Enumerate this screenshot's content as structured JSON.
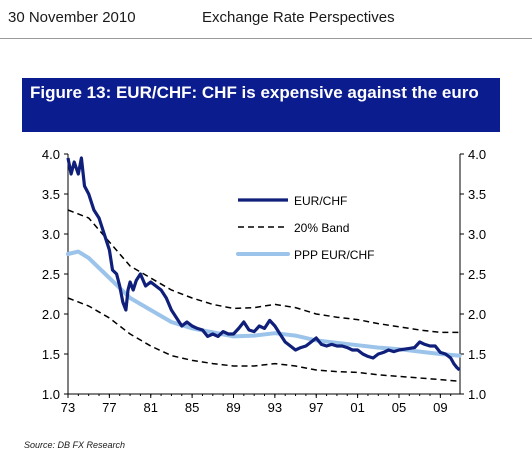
{
  "header": {
    "date": "30 November 2010",
    "publication": "Exchange Rate Perspectives"
  },
  "figure": {
    "title": "Figure 13: EUR/CHF: CHF is expensive against the euro"
  },
  "source": "Source: DB FX Research",
  "colors": {
    "title_bg": "#0b1c8f",
    "eurchf": "#0f1f7a",
    "band": "#000000",
    "ppp": "#9cc4ea"
  },
  "chart_data": {
    "type": "line",
    "xlim": [
      1973,
      2010.9
    ],
    "ylim": [
      1.0,
      4.0
    ],
    "x_ticks": [
      1973,
      1977,
      1981,
      1985,
      1989,
      1993,
      1997,
      2001,
      2005,
      2009
    ],
    "x_tick_labels": [
      "73",
      "77",
      "81",
      "85",
      "89",
      "93",
      "97",
      "01",
      "05",
      "09"
    ],
    "y_ticks": [
      1.0,
      1.5,
      2.0,
      2.5,
      3.0,
      3.5,
      4.0
    ],
    "y_tick_labels": [
      "1.0",
      "1.5",
      "2.0",
      "2.5",
      "3.0",
      "3.5",
      "4.0"
    ],
    "legend_position": "top-right",
    "series": [
      {
        "name": "EUR/CHF",
        "style": "solid-thick",
        "x": [
          1973.0,
          1973.3,
          1973.6,
          1974.0,
          1974.3,
          1974.6,
          1975.0,
          1975.5,
          1976.0,
          1976.5,
          1977.0,
          1977.3,
          1977.7,
          1978.0,
          1978.3,
          1978.6,
          1978.8,
          1979.0,
          1979.3,
          1979.6,
          1980.0,
          1980.5,
          1981.0,
          1981.5,
          1982.0,
          1982.5,
          1983.0,
          1983.5,
          1984.0,
          1984.5,
          1985.0,
          1985.5,
          1986.0,
          1986.5,
          1987.0,
          1987.5,
          1988.0,
          1988.5,
          1989.0,
          1989.5,
          1990.0,
          1990.5,
          1991.0,
          1991.5,
          1992.0,
          1992.5,
          1993.0,
          1993.5,
          1994.0,
          1994.5,
          1995.0,
          1995.5,
          1996.0,
          1996.5,
          1997.0,
          1997.5,
          1998.0,
          1998.5,
          1999.0,
          1999.5,
          2000.0,
          2000.5,
          2001.0,
          2001.5,
          2002.0,
          2002.5,
          2003.0,
          2003.5,
          2004.0,
          2004.5,
          2005.0,
          2005.5,
          2006.0,
          2006.5,
          2007.0,
          2007.5,
          2008.0,
          2008.5,
          2009.0,
          2009.5,
          2010.0,
          2010.3,
          2010.6,
          2010.85
        ],
        "values": [
          3.95,
          3.75,
          3.9,
          3.75,
          3.95,
          3.6,
          3.5,
          3.3,
          3.2,
          3.0,
          2.8,
          2.55,
          2.5,
          2.35,
          2.15,
          2.05,
          2.3,
          2.4,
          2.3,
          2.42,
          2.5,
          2.35,
          2.4,
          2.35,
          2.3,
          2.2,
          2.05,
          1.95,
          1.85,
          1.9,
          1.85,
          1.82,
          1.8,
          1.72,
          1.75,
          1.72,
          1.78,
          1.75,
          1.75,
          1.82,
          1.9,
          1.8,
          1.78,
          1.85,
          1.82,
          1.92,
          1.85,
          1.75,
          1.65,
          1.6,
          1.55,
          1.58,
          1.6,
          1.65,
          1.7,
          1.62,
          1.6,
          1.62,
          1.6,
          1.6,
          1.58,
          1.55,
          1.55,
          1.5,
          1.47,
          1.45,
          1.5,
          1.52,
          1.55,
          1.53,
          1.55,
          1.56,
          1.57,
          1.58,
          1.65,
          1.62,
          1.6,
          1.6,
          1.52,
          1.5,
          1.45,
          1.38,
          1.33,
          1.3
        ]
      },
      {
        "name": "20% Band",
        "style": "dashed",
        "x": [
          1973,
          1975,
          1977,
          1979,
          1981,
          1983,
          1985,
          1987,
          1989,
          1991,
          1993,
          1995,
          1997,
          1999,
          2001,
          2003,
          2005,
          2007,
          2009,
          2010.85
        ],
        "values": [
          3.3,
          3.2,
          2.9,
          2.6,
          2.45,
          2.3,
          2.2,
          2.12,
          2.07,
          2.08,
          2.12,
          2.08,
          2.0,
          1.96,
          1.93,
          1.88,
          1.84,
          1.8,
          1.77,
          1.77
        ]
      },
      {
        "name": "20% Band (lower)",
        "style": "dashed",
        "x": [
          1973,
          1975,
          1977,
          1979,
          1981,
          1983,
          1985,
          1987,
          1989,
          1991,
          1993,
          1995,
          1997,
          1999,
          2001,
          2003,
          2005,
          2007,
          2009,
          2010.85
        ],
        "values": [
          2.2,
          2.1,
          1.95,
          1.75,
          1.6,
          1.48,
          1.42,
          1.38,
          1.35,
          1.35,
          1.38,
          1.35,
          1.3,
          1.28,
          1.27,
          1.24,
          1.22,
          1.2,
          1.18,
          1.16
        ]
      },
      {
        "name": "PPP EUR/CHF",
        "style": "solid-light",
        "x": [
          1973,
          1974,
          1975,
          1977,
          1979,
          1981,
          1983,
          1985,
          1987,
          1989,
          1991,
          1993,
          1995,
          1997,
          1999,
          2001,
          2003,
          2005,
          2007,
          2009,
          2010.85
        ],
        "values": [
          2.75,
          2.78,
          2.7,
          2.45,
          2.2,
          2.05,
          1.9,
          1.82,
          1.77,
          1.72,
          1.73,
          1.76,
          1.73,
          1.67,
          1.64,
          1.61,
          1.58,
          1.56,
          1.53,
          1.5,
          1.48
        ]
      }
    ]
  }
}
